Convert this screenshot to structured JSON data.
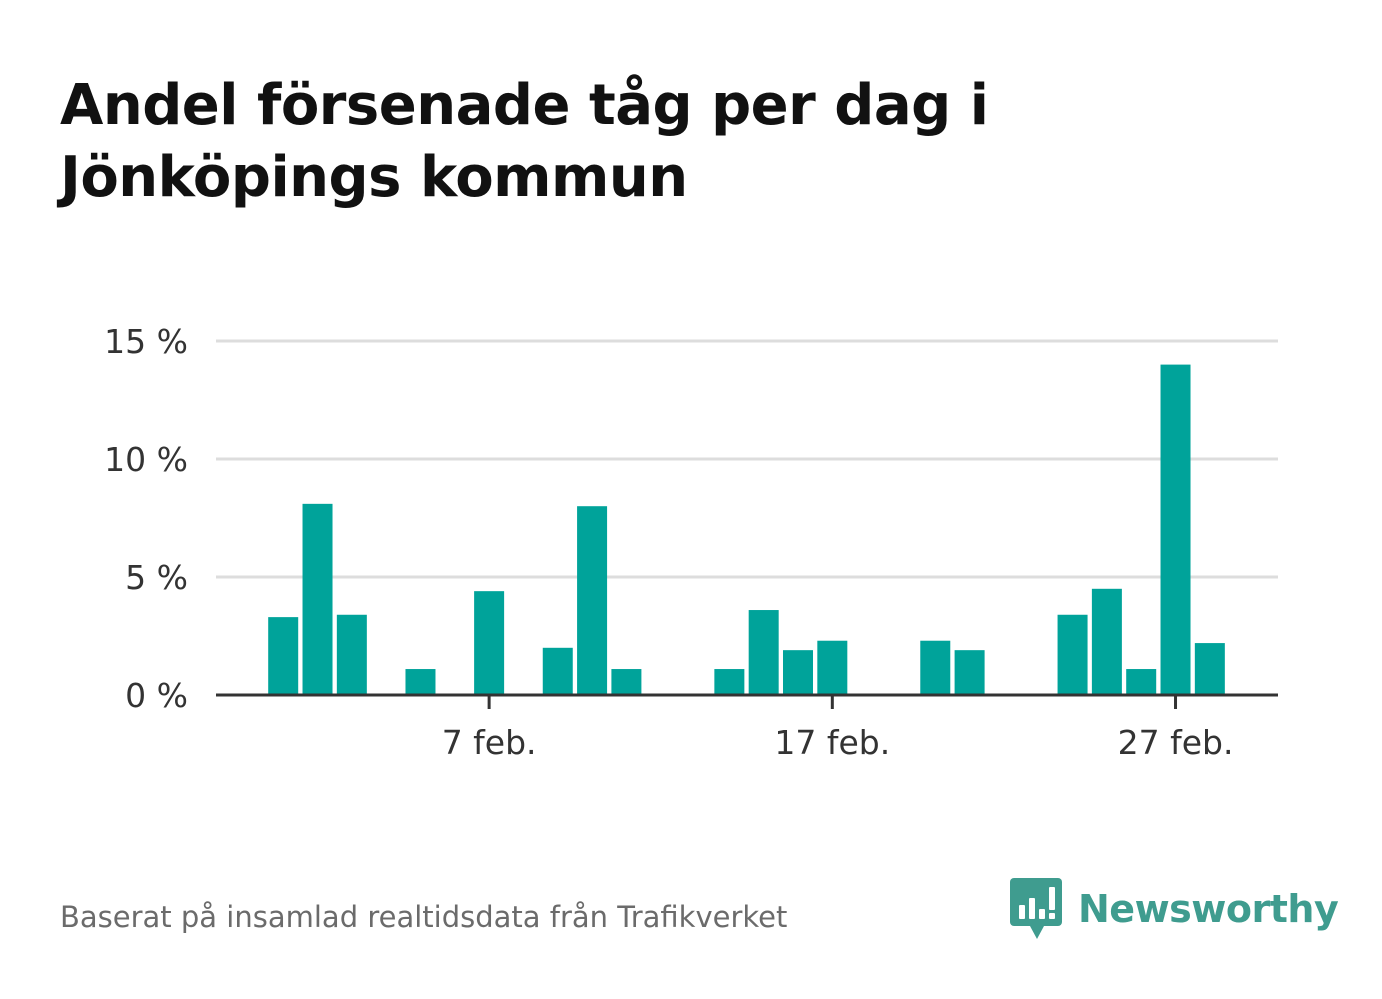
{
  "title": "Andel försenade tåg per dag i Jönköpings kommun",
  "source": "Baserat på insamlad realtidsdata från Trafikverket",
  "brand": {
    "name": "Newsworthy",
    "logo_icon": "bar-chart-speech-bubble-icon",
    "color": "#3f9c8f"
  },
  "colors": {
    "bar": "#00a39a",
    "grid": "#dddddd",
    "axis": "#333333"
  },
  "chart_data": {
    "type": "bar",
    "title": "Andel försenade tåg per dag i Jönköpings kommun",
    "xlabel": "",
    "ylabel": "",
    "categories": [
      "1 feb.",
      "2 feb.",
      "3 feb.",
      "4 feb.",
      "5 feb.",
      "6 feb.",
      "7 feb.",
      "8 feb.",
      "9 feb.",
      "10 feb.",
      "11 feb.",
      "12 feb.",
      "13 feb.",
      "14 feb.",
      "15 feb.",
      "16 feb.",
      "17 feb.",
      "18 feb.",
      "19 feb.",
      "20 feb.",
      "21 feb.",
      "22 feb.",
      "23 feb.",
      "24 feb.",
      "25 feb.",
      "26 feb.",
      "27 feb.",
      "28 feb."
    ],
    "values": [
      3.3,
      8.1,
      3.4,
      0,
      1.1,
      0,
      4.4,
      0,
      2.0,
      8.0,
      1.1,
      0,
      0,
      1.1,
      3.6,
      1.9,
      2.3,
      0,
      0,
      2.3,
      1.9,
      0,
      0,
      3.4,
      4.5,
      1.1,
      14.0,
      2.2
    ],
    "ylim": [
      0,
      15
    ],
    "yticks": [
      0,
      5,
      10,
      15
    ],
    "ytick_labels": [
      "0 %",
      "5 %",
      "10 %",
      "15 %"
    ],
    "xticks": [
      "7 feb.",
      "17 feb.",
      "27 feb."
    ],
    "grid": true,
    "legend": "none"
  }
}
